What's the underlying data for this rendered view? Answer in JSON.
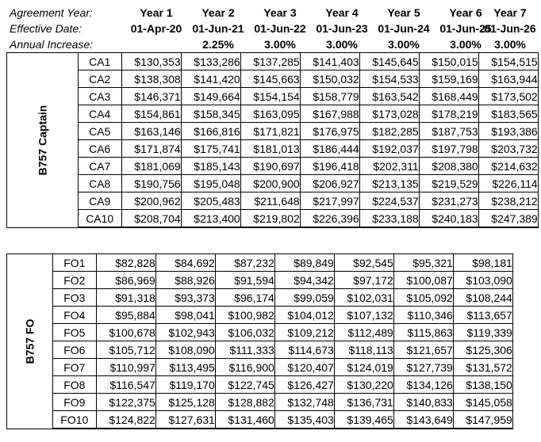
{
  "header": {
    "agreement_year_label": "Agreement Year:",
    "effective_date_label": "Effective Date:",
    "annual_increase_label": "Annual Increase:",
    "years": [
      "Year 1",
      "Year 2",
      "Year 3",
      "Year 4",
      "Year 5",
      "Year 6",
      "Year 7"
    ],
    "dates": [
      "01-Apr-20",
      "01-Jun-21",
      "01-Jun-22",
      "01-Jun-23",
      "01-Jun-24",
      "01-Jun-25",
      "01-Jun-26"
    ],
    "increases": [
      "",
      "2.25%",
      "3.00%",
      "3.00%",
      "3.00%",
      "3.00%",
      "3.00%"
    ]
  },
  "captain": {
    "group_label": "B757 Captain",
    "rows": [
      {
        "pos": "CA1",
        "vals": [
          "$130,353",
          "$133,286",
          "$137,285",
          "$141,403",
          "$145,645",
          "$150,015",
          "$154,515"
        ]
      },
      {
        "pos": "CA2",
        "vals": [
          "$138,308",
          "$141,420",
          "$145,663",
          "$150,032",
          "$154,533",
          "$159,169",
          "$163,944"
        ]
      },
      {
        "pos": "CA3",
        "vals": [
          "$146,371",
          "$149,664",
          "$154,154",
          "$158,779",
          "$163,542",
          "$168,449",
          "$173,502"
        ]
      },
      {
        "pos": "CA4",
        "vals": [
          "$154,861",
          "$158,345",
          "$163,095",
          "$167,988",
          "$173,028",
          "$178,219",
          "$183,565"
        ]
      },
      {
        "pos": "CA5",
        "vals": [
          "$163,146",
          "$166,816",
          "$171,821",
          "$176,975",
          "$182,285",
          "$187,753",
          "$193,386"
        ]
      },
      {
        "pos": "CA6",
        "vals": [
          "$171,874",
          "$175,741",
          "$181,013",
          "$186,444",
          "$192,037",
          "$197,798",
          "$203,732"
        ]
      },
      {
        "pos": "CA7",
        "vals": [
          "$181,069",
          "$185,143",
          "$190,697",
          "$196,418",
          "$202,311",
          "$208,380",
          "$214,632"
        ]
      },
      {
        "pos": "CA8",
        "vals": [
          "$190,756",
          "$195,048",
          "$200,900",
          "$206,927",
          "$213,135",
          "$219,529",
          "$226,114"
        ]
      },
      {
        "pos": "CA9",
        "vals": [
          "$200,962",
          "$205,483",
          "$211,648",
          "$217,997",
          "$224,537",
          "$231,273",
          "$238,212"
        ]
      },
      {
        "pos": "CA10",
        "vals": [
          "$208,704",
          "$213,400",
          "$219,802",
          "$226,396",
          "$233,188",
          "$240,183",
          "$247,389"
        ]
      }
    ]
  },
  "fo": {
    "group_label": "B757 FO",
    "rows": [
      {
        "pos": "FO1",
        "vals": [
          "$82,828",
          "$84,692",
          "$87,232",
          "$89,849",
          "$92,545",
          "$95,321",
          "$98,181"
        ]
      },
      {
        "pos": "FO2",
        "vals": [
          "$86,969",
          "$88,926",
          "$91,594",
          "$94,342",
          "$97,172",
          "$100,087",
          "$103,090"
        ]
      },
      {
        "pos": "FO3",
        "vals": [
          "$91,318",
          "$93,373",
          "$96,174",
          "$99,059",
          "$102,031",
          "$105,092",
          "$108,244"
        ]
      },
      {
        "pos": "FO4",
        "vals": [
          "$95,884",
          "$98,041",
          "$100,982",
          "$104,012",
          "$107,132",
          "$110,346",
          "$113,657"
        ]
      },
      {
        "pos": "FO5",
        "vals": [
          "$100,678",
          "$102,943",
          "$106,032",
          "$109,212",
          "$112,489",
          "$115,863",
          "$119,339"
        ]
      },
      {
        "pos": "FO6",
        "vals": [
          "$105,712",
          "$108,090",
          "$111,333",
          "$114,673",
          "$118,113",
          "$121,657",
          "$125,306"
        ]
      },
      {
        "pos": "FO7",
        "vals": [
          "$110,997",
          "$113,495",
          "$116,900",
          "$120,407",
          "$124,019",
          "$127,739",
          "$131,572"
        ]
      },
      {
        "pos": "FO8",
        "vals": [
          "$116,547",
          "$119,170",
          "$122,745",
          "$126,427",
          "$130,220",
          "$134,126",
          "$138,150"
        ]
      },
      {
        "pos": "FO9",
        "vals": [
          "$122,375",
          "$125,128",
          "$128,882",
          "$132,748",
          "$136,731",
          "$140,833",
          "$145,058"
        ]
      },
      {
        "pos": "FO10",
        "vals": [
          "$124,822",
          "$127,631",
          "$131,460",
          "$135,403",
          "$139,465",
          "$143,649",
          "$147,959"
        ]
      }
    ]
  }
}
